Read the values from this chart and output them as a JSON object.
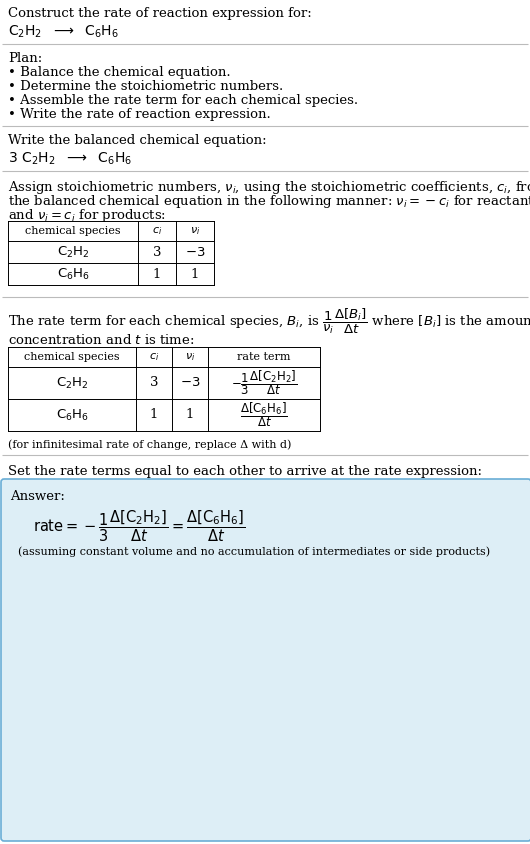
{
  "bg_color": "#ffffff",
  "title_text": "Construct the rate of reaction expression for:",
  "plan_items": [
    "• Balance the chemical equation.",
    "• Determine the stoichiometric numbers.",
    "• Assemble the rate term for each chemical species.",
    "• Write the rate of reaction expression."
  ],
  "section2_title": "Write the balanced chemical equation:",
  "section5_text": "Set the rate terms equal to each other to arrive at the rate expression:",
  "answer_box_color": "#ddeef6",
  "answer_box_border": "#6aaed6",
  "answer_label": "Answer:",
  "answer_note": "(assuming constant volume and no accumulation of intermediates or side products)",
  "separator_color": "#aaaaaa",
  "text_color": "#000000",
  "infinitesimal_note": "(for infinitesimal rate of change, replace Δ with d)"
}
